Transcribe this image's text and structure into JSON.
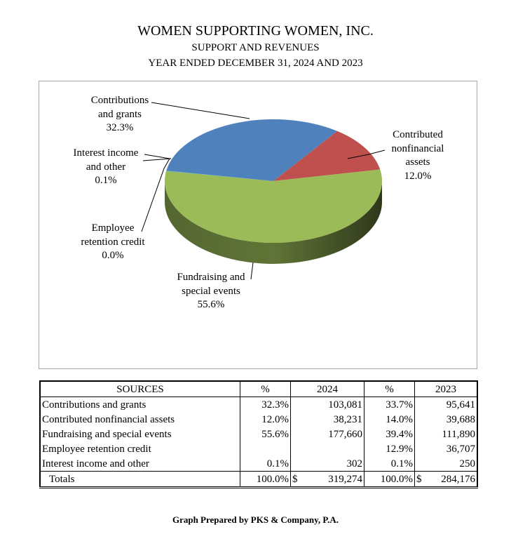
{
  "header": {
    "org": "WOMEN SUPPORTING WOMEN, INC.",
    "subtitle": "SUPPORT AND REVENUES",
    "period": "YEAR ENDED DECEMBER 31, 2024 AND 2023"
  },
  "chart_data": {
    "type": "pie",
    "categories": [
      "Contributions and grants",
      "Contributed nonfinancial assets",
      "Fundraising and special events",
      "Employee retention credit",
      "Interest income and other"
    ],
    "values": [
      32.3,
      12.0,
      55.6,
      0.0,
      0.1
    ],
    "colors": [
      "#4f81bd",
      "#c0504d",
      "#9bbb59",
      "#8064a2",
      "#4bacc6"
    ],
    "labels": [
      {
        "lines": [
          "Contributions",
          "and grants",
          "32.3%"
        ]
      },
      {
        "lines": [
          "Contributed",
          "nonfinancial",
          "assets",
          "12.0%"
        ]
      },
      {
        "lines": [
          "Fundraising and",
          "special events",
          "55.6%"
        ]
      },
      {
        "lines": [
          "Employee",
          "retention credit",
          "0.0%"
        ]
      },
      {
        "lines": [
          "Interest income",
          "and other",
          "0.1%"
        ]
      }
    ]
  },
  "table": {
    "headers": [
      "SOURCES",
      "%",
      "2024",
      "%",
      "2023"
    ],
    "rows": [
      [
        "Contributions and grants",
        "32.3%",
        "103,081",
        "33.7%",
        "95,641"
      ],
      [
        "Contributed nonfinancial assets",
        "12.0%",
        "38,231",
        "14.0%",
        "39,688"
      ],
      [
        "Fundraising and special events",
        "55.6%",
        "177,660",
        "39.4%",
        "111,890"
      ],
      [
        "Employee retention credit",
        "",
        "",
        "12.9%",
        "36,707"
      ],
      [
        "Interest income and other",
        "0.1%",
        "302",
        "0.1%",
        "250"
      ]
    ],
    "totals": {
      "label": "Totals",
      "pct_2024": "100.0%",
      "cur_2024": "$",
      "amt_2024": "319,274",
      "pct_2023": "100.0%",
      "cur_2023": "$",
      "amt_2023": "284,176"
    }
  },
  "footer": "Graph Prepared by PKS & Company, P.A."
}
